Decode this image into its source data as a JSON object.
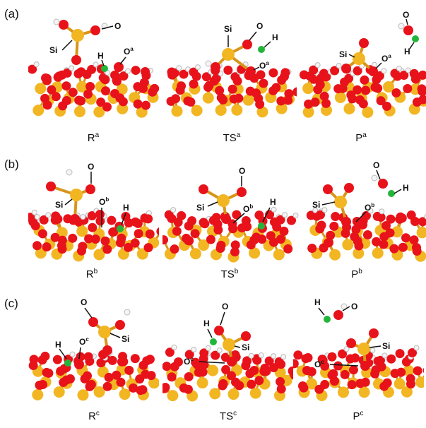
{
  "rows": [
    {
      "label": "(a)",
      "panels": [
        {
          "id": "Ra",
          "name": "R",
          "sup": "a",
          "atoms": [
            "Si",
            "O",
            "H",
            "O",
            "a"
          ]
        },
        {
          "id": "TSa",
          "name": "TS",
          "sup": "a",
          "atoms": [
            "Si",
            "O",
            "H",
            "O",
            "a"
          ]
        },
        {
          "id": "Pa",
          "name": "P",
          "sup": "a",
          "atoms": [
            "Si",
            "O",
            "H",
            "O",
            "a"
          ]
        }
      ]
    },
    {
      "label": "(b)",
      "panels": [
        {
          "id": "Rb",
          "name": "R",
          "sup": "b",
          "atoms": [
            "Si",
            "O",
            "H",
            "O",
            "b"
          ]
        },
        {
          "id": "TSb",
          "name": "TS",
          "sup": "b",
          "atoms": [
            "Si",
            "O",
            "H",
            "O",
            "b"
          ]
        },
        {
          "id": "Pb",
          "name": "P",
          "sup": "b",
          "atoms": [
            "Si",
            "O",
            "H",
            "O",
            "b"
          ]
        }
      ]
    },
    {
      "label": "(c)",
      "panels": [
        {
          "id": "Rc",
          "name": "R",
          "sup": "c",
          "atoms": [
            "Si",
            "O",
            "H",
            "O",
            "c"
          ]
        },
        {
          "id": "TSc",
          "name": "TS",
          "sup": "c",
          "atoms": [
            "Si",
            "O",
            "H",
            "O",
            "c"
          ]
        },
        {
          "id": "Pc",
          "name": "P",
          "sup": "c",
          "atoms": [
            "Si",
            "O",
            "H",
            "O",
            "c"
          ]
        }
      ]
    }
  ],
  "colors": {
    "oxygen": "#e8121a",
    "silicon": "#f2b623",
    "hydrogen": "#f4f4f4",
    "tracked_hydrogen": "#22b53a",
    "bond": "#d8951b"
  }
}
